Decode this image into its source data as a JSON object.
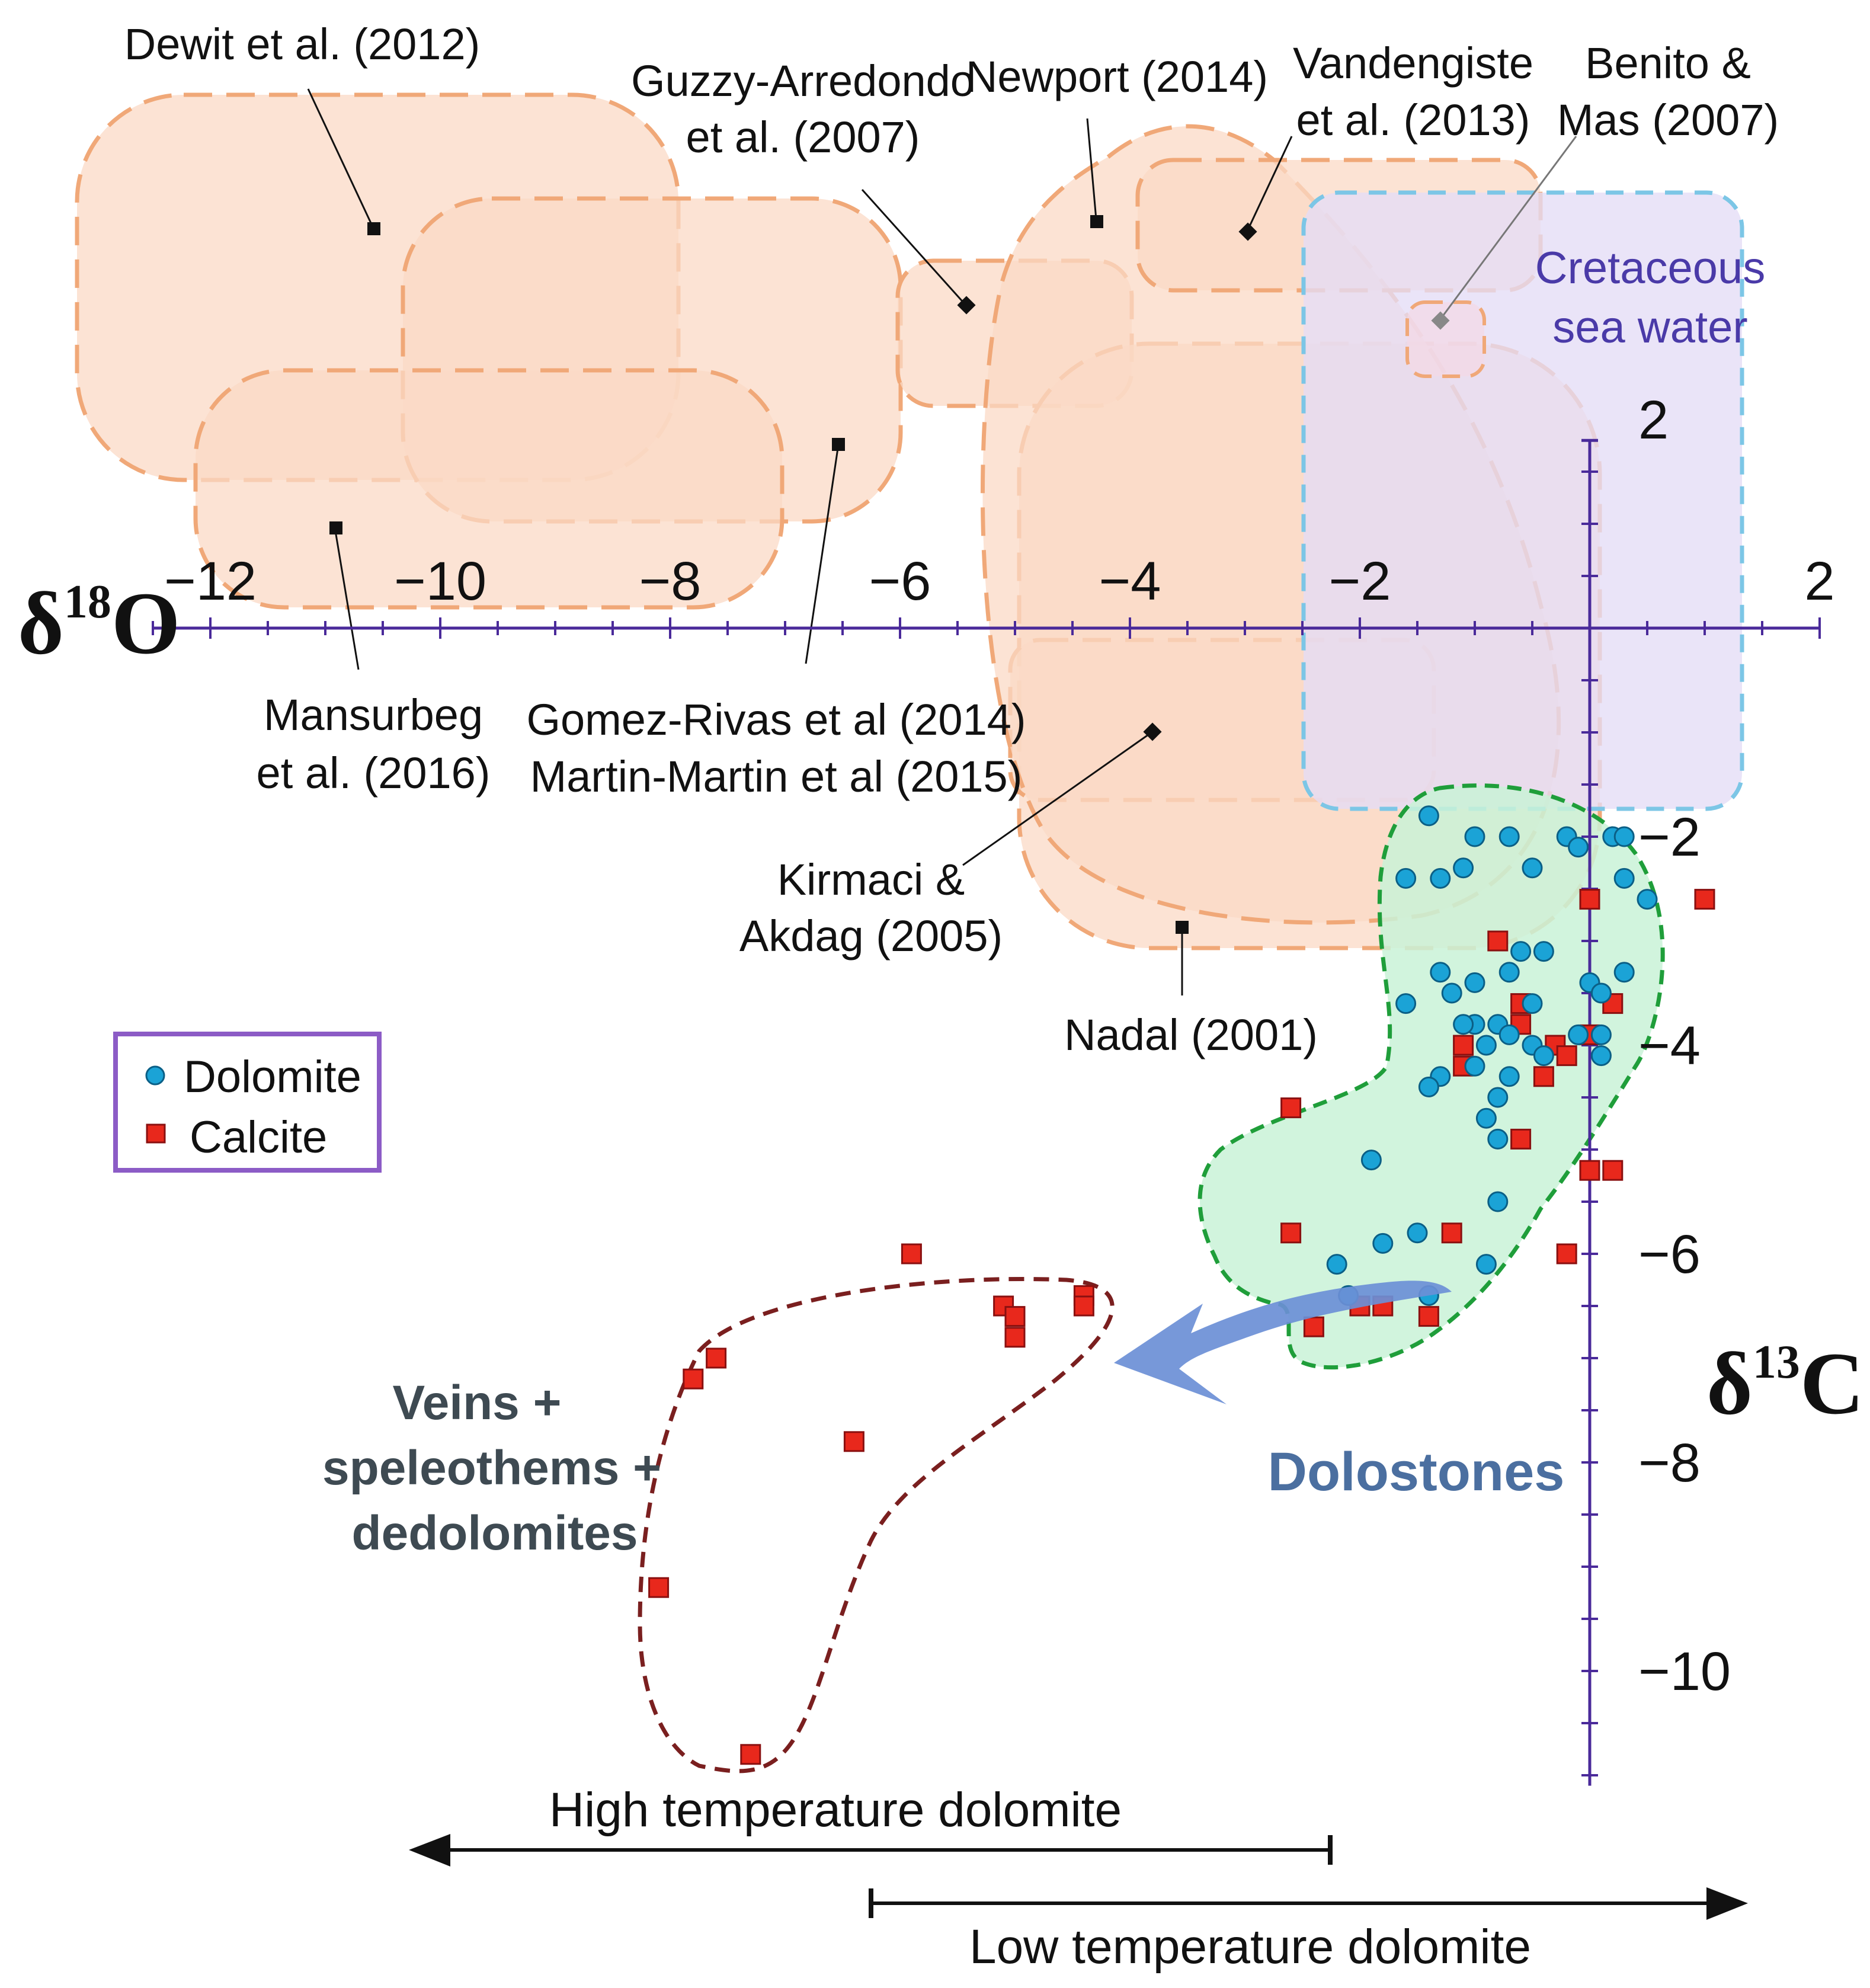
{
  "chart_data": {
    "type": "scatter",
    "x_axis": {
      "label_base": "δ",
      "label_sup": "18",
      "label_el": "O",
      "range": [
        -12,
        2
      ],
      "ticks": [
        {
          "v": -12,
          "label": "−12"
        },
        {
          "v": -10,
          "label": "−10"
        },
        {
          "v": -8,
          "label": "−8"
        },
        {
          "v": -6,
          "label": "−6"
        },
        {
          "v": -4,
          "label": "−4"
        },
        {
          "v": -2,
          "label": "−2"
        },
        {
          "v": 2,
          "label": "2"
        }
      ]
    },
    "y_axis": {
      "label_base": "δ",
      "label_sup": "13",
      "label_el": "C",
      "range": [
        -11,
        2
      ],
      "ticks": [
        {
          "v": 2,
          "label": "2"
        },
        {
          "v": -2,
          "label": "−2"
        },
        {
          "v": -4,
          "label": "−4"
        },
        {
          "v": -6,
          "label": "−6"
        },
        {
          "v": -8,
          "label": "−8"
        },
        {
          "v": -10,
          "label": "−10"
        }
      ]
    },
    "legend": [
      {
        "name": "Dolomite",
        "marker": "circle",
        "color": "#1ba3d6"
      },
      {
        "name": "Calcite",
        "marker": "square",
        "color": "#e8281c"
      }
    ],
    "series": [
      {
        "name": "Dolomite",
        "points": [
          [
            -1.4,
            -1.8
          ],
          [
            -1.0,
            -2.0
          ],
          [
            -0.7,
            -2.0
          ],
          [
            -0.2,
            -2.0
          ],
          [
            -0.1,
            -2.1
          ],
          [
            0.2,
            -2.0
          ],
          [
            0.3,
            -2.0
          ],
          [
            -1.6,
            -2.4
          ],
          [
            -1.3,
            -2.4
          ],
          [
            -1.1,
            -2.3
          ],
          [
            -0.5,
            -2.3
          ],
          [
            0.3,
            -2.4
          ],
          [
            0.5,
            -2.6
          ],
          [
            -0.6,
            -3.1
          ],
          [
            -0.4,
            -3.1
          ],
          [
            -1.3,
            -3.3
          ],
          [
            -0.7,
            -3.3
          ],
          [
            -1.0,
            -3.4
          ],
          [
            -1.2,
            -3.5
          ],
          [
            -0.5,
            -3.6
          ],
          [
            0.0,
            -3.4
          ],
          [
            0.1,
            -3.5
          ],
          [
            0.3,
            -3.3
          ],
          [
            -1.6,
            -3.6
          ],
          [
            -1.0,
            -3.8
          ],
          [
            -0.8,
            -3.8
          ],
          [
            -1.1,
            -3.8
          ],
          [
            -0.7,
            -3.9
          ],
          [
            -0.9,
            -4.0
          ],
          [
            -0.5,
            -4.0
          ],
          [
            -0.4,
            -4.1
          ],
          [
            -0.1,
            -3.9
          ],
          [
            0.1,
            -3.9
          ],
          [
            0.1,
            -4.1
          ],
          [
            -1.3,
            -4.3
          ],
          [
            -1.0,
            -4.2
          ],
          [
            -0.7,
            -4.3
          ],
          [
            -0.8,
            -4.5
          ],
          [
            -1.4,
            -4.4
          ],
          [
            -0.9,
            -4.7
          ],
          [
            -0.8,
            -4.9
          ],
          [
            -1.9,
            -5.1
          ],
          [
            -0.8,
            -5.5
          ],
          [
            -1.8,
            -5.9
          ],
          [
            -1.5,
            -5.8
          ],
          [
            -2.2,
            -6.1
          ],
          [
            -0.9,
            -6.1
          ],
          [
            -2.1,
            -6.4
          ],
          [
            -1.4,
            -6.4
          ]
        ]
      },
      {
        "name": "Calcite",
        "points": [
          [
            1.0,
            -2.6
          ],
          [
            0.0,
            -2.6
          ],
          [
            -0.8,
            -3.0
          ],
          [
            -0.6,
            -3.6
          ],
          [
            -0.6,
            -3.8
          ],
          [
            -0.3,
            -4.0
          ],
          [
            -1.1,
            -4.0
          ],
          [
            -1.1,
            -4.2
          ],
          [
            -0.2,
            -4.1
          ],
          [
            0.0,
            -3.9
          ],
          [
            0.2,
            -3.6
          ],
          [
            -0.4,
            -4.3
          ],
          [
            -2.6,
            -4.6
          ],
          [
            -0.6,
            -4.9
          ],
          [
            0.0,
            -5.2
          ],
          [
            0.2,
            -5.2
          ],
          [
            -1.2,
            -5.8
          ],
          [
            -2.6,
            -5.8
          ],
          [
            -0.2,
            -6.0
          ],
          [
            -2.0,
            -6.5
          ],
          [
            -1.8,
            -6.5
          ],
          [
            -1.4,
            -6.6
          ],
          [
            -2.4,
            -6.7
          ],
          [
            -5.9,
            -6.0
          ],
          [
            -4.4,
            -6.4
          ],
          [
            -5.1,
            -6.5
          ],
          [
            -4.4,
            -6.5
          ],
          [
            -5.0,
            -6.6
          ],
          [
            -5.0,
            -6.8
          ],
          [
            -7.6,
            -7.0
          ],
          [
            -7.8,
            -7.2
          ],
          [
            -6.4,
            -7.8
          ],
          [
            -8.1,
            -9.2
          ],
          [
            -7.3,
            -10.8
          ]
        ]
      }
    ],
    "reference_studies": [
      {
        "name": "dewit",
        "lines": [
          "Dewit et al. (2012)"
        ]
      },
      {
        "name": "guzzy",
        "lines": [
          "Guzzy-Arredondo",
          "et al. (2007)"
        ]
      },
      {
        "name": "newport",
        "lines": [
          "Newport (2014)"
        ]
      },
      {
        "name": "vandengiste",
        "lines": [
          "Vandengiste",
          "et al. (2013)"
        ]
      },
      {
        "name": "benito",
        "lines": [
          "Benito &",
          "Mas (2007)"
        ]
      },
      {
        "name": "mansurbeg",
        "lines": [
          "Mansurbeg",
          "et al. (2016)"
        ]
      },
      {
        "name": "gomez",
        "lines": [
          "Gomez-Rivas et al (2014)",
          "Martin-Martin et al (2015)"
        ]
      },
      {
        "name": "kirmaci",
        "lines": [
          "Kirmaci &",
          "Akdag (2005)"
        ]
      },
      {
        "name": "nadal",
        "lines": [
          "Nadal (2001)"
        ]
      }
    ],
    "seawater": {
      "lines": [
        "Cretaceous",
        "sea water"
      ]
    },
    "fields": {
      "dolostones": "Dolostones",
      "veins": [
        "Veins +",
        "speleothems +",
        "dedolomites"
      ]
    },
    "temperature_ranges": {
      "high": "High temperature dolomite",
      "low": "Low temperature dolomite"
    },
    "colors": {
      "axis": "#4a2a9a",
      "reference_fill": "#fbd9c6",
      "reference_stroke": "#f0a878",
      "seawater_fill": "#e4dcf6",
      "seawater_stroke": "#7cc6e6",
      "dolostone_fill": "#c9f2d7",
      "dolostone_stroke": "#1f9e3a",
      "veins_stroke": "#7a1f1f",
      "arrow": "#6b8fd6",
      "legend_border": "#8c5cc6"
    }
  }
}
